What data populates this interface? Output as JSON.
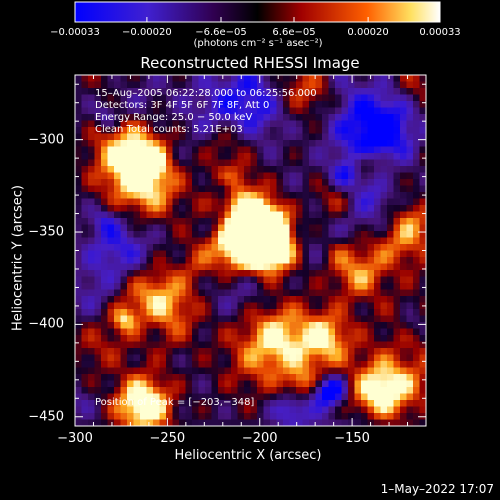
{
  "chart_data": {
    "type": "heatmap",
    "title": "Reconstructed RHESSI Image",
    "xlabel": "Heliocentric X (arcsec)",
    "ylabel": "Heliocentric Y (arcsec)",
    "xlim": [
      -300,
      -110
    ],
    "ylim": [
      -455,
      -265
    ],
    "x_ticks": [
      "−300",
      "−250",
      "−200",
      "−150"
    ],
    "x_tick_values": [
      -300,
      -250,
      -200,
      -150
    ],
    "y_ticks": [
      "−300",
      "−350",
      "−400",
      "−450"
    ],
    "y_tick_values": [
      -300,
      -350,
      -400,
      -450
    ],
    "colorbar": {
      "range": [
        -0.00033,
        0.00033
      ],
      "tick_labels": [
        "−0.00033",
        "−0.00020",
        "−6.6e−05",
        "6.6e−05",
        "0.00020",
        "0.00033"
      ],
      "tick_values": [
        -0.00033,
        -0.0002,
        -6.6e-05,
        6.6e-05,
        0.0002,
        0.00033
      ],
      "units": "(photons cm⁻² s⁻¹ asec⁻²)",
      "colors": [
        "#0000ff",
        "#6020a0",
        "#000000",
        "#c01010",
        "#ff8000",
        "#ffff80",
        "#ffffff"
      ]
    },
    "annotations": {
      "time_range": "15–Aug–2005 06:22:28.000 to 06:25:56.000",
      "detectors": "Detectors: 3F 4F 5F 6F 7F 8F, Att 0",
      "energy": "Energy Range: 25.0 − 50.0 keV",
      "clean": "Clean      Total counts: 5.21E+03",
      "peak": "Position of Peak = [−203,−348]"
    },
    "peak_position": [
      -203,
      -348
    ],
    "grid": false
  },
  "footer": {
    "timestamp": "1–May–2022 17:07"
  }
}
